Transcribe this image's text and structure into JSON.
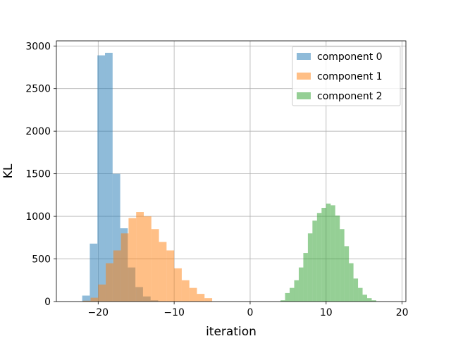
{
  "chart_data": {
    "type": "bar",
    "title": "",
    "xlabel": "iteration",
    "ylabel": "KL",
    "xlim": [
      -25.5,
      20.5
    ],
    "ylim": [
      0,
      3060
    ],
    "xticks": [
      -20,
      -10,
      0,
      10,
      20
    ],
    "xtick_labels": [
      "−20",
      "−10",
      "0",
      "10",
      "20"
    ],
    "yticks": [
      0,
      500,
      1000,
      1500,
      2000,
      2500,
      3000
    ],
    "ytick_labels": [
      "0",
      "500",
      "1000",
      "1500",
      "2000",
      "2500",
      "3000"
    ],
    "grid": true,
    "legend_position": "top-right",
    "series": [
      {
        "name": "component 0",
        "color": "#1f77b4",
        "opacity": 0.5,
        "bin_edges": [
          -22.1,
          -21.1,
          -20.1,
          -19.1,
          -18.1,
          -17.1,
          -16.1,
          -15.1,
          -14.1,
          -13.1,
          -12.1
        ],
        "counts": [
          70,
          680,
          2890,
          2920,
          1500,
          860,
          400,
          170,
          60,
          15
        ]
      },
      {
        "name": "component 1",
        "color": "#ff7f0e",
        "opacity": 0.5,
        "bin_edges": [
          -22.0,
          -21.0,
          -20.0,
          -19.0,
          -18.0,
          -17.0,
          -16.0,
          -15.0,
          -14.0,
          -13.0,
          -12.0,
          -11.0,
          -10.0,
          -9.0,
          -8.0,
          -7.0,
          -6.0,
          -5.0
        ],
        "counts": [
          10,
          45,
          200,
          450,
          600,
          800,
          980,
          1050,
          1000,
          850,
          700,
          600,
          390,
          250,
          160,
          90,
          40
        ]
      },
      {
        "name": "component 2",
        "color": "#2ca02c",
        "opacity": 0.5,
        "bin_edges": [
          4.0,
          4.6,
          5.2,
          5.8,
          6.4,
          7.0,
          7.6,
          8.2,
          8.8,
          9.4,
          10.0,
          10.6,
          11.2,
          11.8,
          12.4,
          13.0,
          13.6,
          14.2,
          14.8,
          15.4,
          16.0,
          16.6
        ],
        "counts": [
          15,
          100,
          160,
          250,
          400,
          570,
          800,
          950,
          1040,
          1100,
          1150,
          1130,
          1010,
          850,
          650,
          450,
          270,
          160,
          80,
          40,
          15
        ]
      }
    ]
  }
}
